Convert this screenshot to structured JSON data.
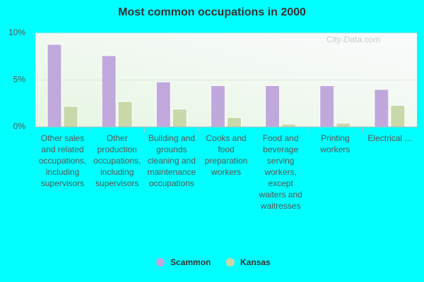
{
  "chart_data": {
    "type": "bar",
    "title": "Most common occupations in 2000",
    "categories": [
      "Other sales and related occupations, including supervisors",
      "Other production occupations, including supervisors",
      "Building and grounds cleaning and maintenance occupations",
      "Cooks and food preparation workers",
      "Food and beverage serving workers, except waiters and waitresses",
      "Printing workers",
      "Electrical ..."
    ],
    "series": [
      {
        "name": "Scammon",
        "color": "#c0a8dc",
        "values": [
          8.8,
          7.6,
          4.8,
          4.4,
          4.4,
          4.4,
          4.0
        ]
      },
      {
        "name": "Kansas",
        "color": "#c8d8a8",
        "values": [
          2.2,
          2.7,
          1.9,
          1.0,
          0.3,
          0.4,
          2.3
        ]
      }
    ],
    "ylim": [
      0,
      10
    ],
    "yticks": [
      {
        "value": 0,
        "label": "0%"
      },
      {
        "value": 5,
        "label": "5%"
      },
      {
        "value": 10,
        "label": "10%"
      }
    ],
    "grid": true,
    "legend": "bottom",
    "watermark": "City-Data.com"
  }
}
